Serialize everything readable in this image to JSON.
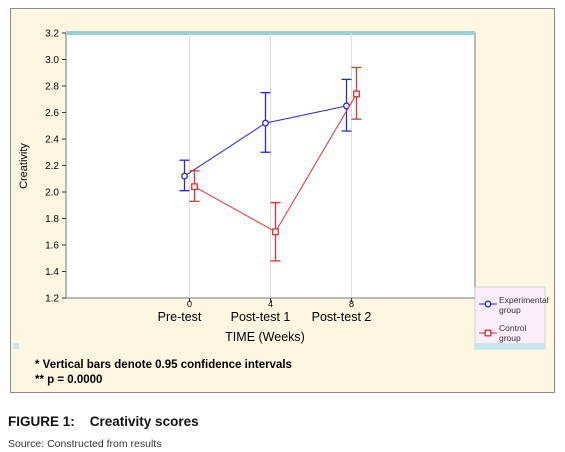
{
  "figure": {
    "label": "FIGURE 1:",
    "title": "Creativity scores",
    "source": "Source: Constructed from results"
  },
  "footnotes": [
    "*  Vertical bars denote 0.95 confidence intervals",
    "**  p = 0.0000"
  ],
  "colors": {
    "experimental": "#2a2acc",
    "control": "#e03030",
    "panel": "#fdf7e2",
    "plot_bg": "#ffffff",
    "legend_bg": "#fbeefb"
  },
  "chart_data": {
    "type": "line",
    "title": "",
    "xlabel": "TIME (Weeks)",
    "ylabel": "Creativity",
    "x": [
      0,
      4,
      8
    ],
    "x_tick_labels": [
      "0",
      "4",
      "8"
    ],
    "categories": [
      "Pre-test",
      "Post-test 1",
      "Post-test 2"
    ],
    "ylim": [
      1.2,
      3.2
    ],
    "yticks": [
      "1.2",
      "1.4",
      "1.6",
      "1.8",
      "2.0",
      "2.2",
      "2.4",
      "2.6",
      "2.8",
      "3.0",
      "3.2"
    ],
    "grid": true,
    "legend_position": "right",
    "series": [
      {
        "name": "Experimental group",
        "marker": "circle",
        "values": [
          2.12,
          2.52,
          2.65
        ],
        "ci_low": [
          2.01,
          2.3,
          2.46
        ],
        "ci_high": [
          2.24,
          2.75,
          2.85
        ]
      },
      {
        "name": "Control group",
        "marker": "square",
        "values": [
          2.04,
          1.7,
          2.74
        ],
        "ci_low": [
          1.93,
          1.48,
          2.55
        ],
        "ci_high": [
          2.16,
          1.92,
          2.94
        ]
      }
    ]
  }
}
